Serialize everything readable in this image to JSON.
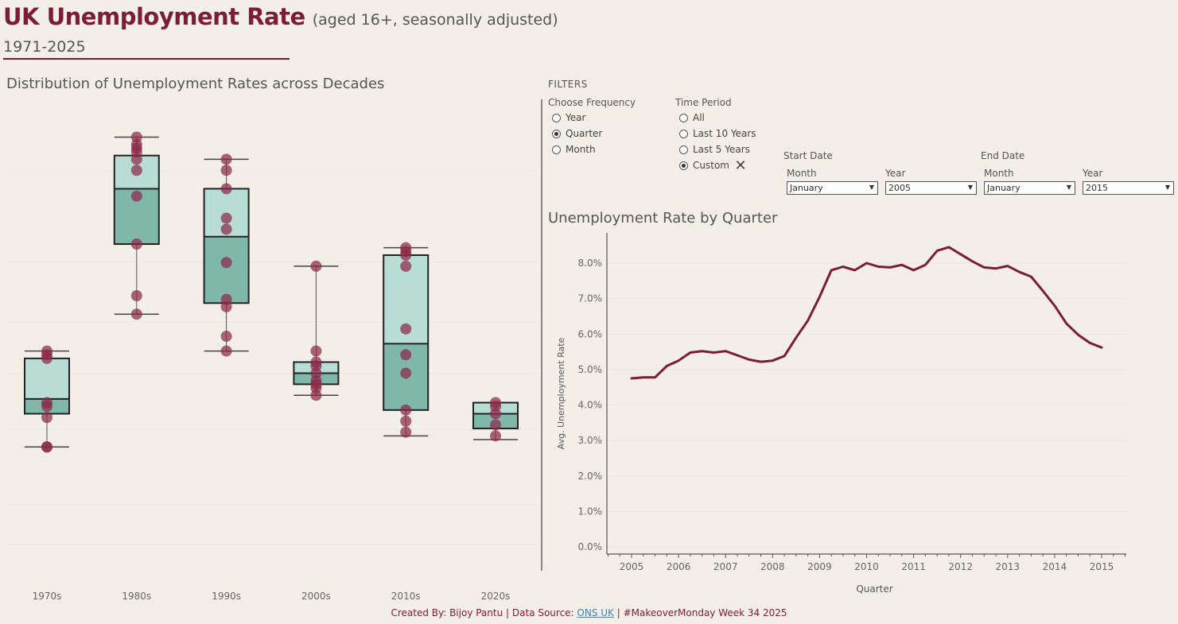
{
  "header": {
    "title": "UK Unemployment Rate",
    "subtitle": "(aged 16+, seasonally adjusted)",
    "years": "1971-2025"
  },
  "boxplot": {
    "section_title": "Distribution of Unemployment Rates across Decades"
  },
  "linechart": {
    "section_title": "Unemployment Rate by Quarter"
  },
  "filters": {
    "title": "FILTERS",
    "frequency": {
      "label": "Choose Frequency",
      "options": [
        "Year",
        "Quarter",
        "Month"
      ],
      "selected": "Quarter"
    },
    "time_period": {
      "label": "Time Period",
      "options": [
        "All",
        "Last 10 Years",
        "Last 5 Years",
        "Custom"
      ],
      "selected": "Custom"
    },
    "start_date": {
      "label": "Start Date",
      "month_label": "Month",
      "year_label": "Year",
      "month": "January",
      "year": "2005"
    },
    "end_date": {
      "label": "End Date",
      "month_label": "Month",
      "year_label": "Year",
      "month": "January",
      "year": "2015"
    }
  },
  "footer": {
    "prefix": "Created By: Bijoy Pantu | Data Source: ",
    "link": "ONS UK",
    "suffix": " | #MakeoverMonday Week 34 2025"
  },
  "colors": {
    "brand": "#7b1c38",
    "box_upper": "#b7ddd4",
    "box_lower": "#7fb8a8",
    "dot": "#8b2a4a",
    "line": "#7b1c38"
  },
  "chart_data": [
    {
      "type": "box",
      "title": "Distribution of Unemployment Rates across Decades",
      "categories": [
        "1970s",
        "1980s",
        "1990s",
        "2000s",
        "2010s",
        "2020s"
      ],
      "ylim": [
        0,
        12.5
      ],
      "boxes": [
        {
          "category": "1970s",
          "min": 3.4,
          "q1": 4.3,
          "median": 4.7,
          "q3": 5.8,
          "max": 6.0,
          "points": [
            3.4,
            3.4,
            4.2,
            4.5,
            4.6,
            5.8,
            5.9,
            6.0
          ]
        },
        {
          "category": "1980s",
          "min": 7.0,
          "q1": 8.9,
          "median": 10.4,
          "q3": 11.3,
          "max": 11.8,
          "points": [
            7.0,
            7.5,
            8.9,
            10.2,
            10.9,
            11.2,
            11.4,
            11.5,
            11.6,
            11.8
          ]
        },
        {
          "category": "1990s",
          "min": 6.0,
          "q1": 7.3,
          "median": 9.1,
          "q3": 10.4,
          "max": 11.2,
          "points": [
            6.0,
            6.4,
            7.2,
            7.4,
            8.4,
            9.3,
            9.6,
            10.4,
            10.9,
            11.2
          ]
        },
        {
          "category": "2000s",
          "min": 4.8,
          "q1": 5.1,
          "median": 5.4,
          "q3": 5.7,
          "max": 8.3,
          "points": [
            4.8,
            5.0,
            5.1,
            5.2,
            5.4,
            5.6,
            5.7,
            6.0,
            8.3
          ]
        },
        {
          "category": "2010s",
          "min": 3.7,
          "q1": 4.4,
          "median": 6.2,
          "q3": 8.6,
          "max": 8.8,
          "points": [
            3.8,
            4.1,
            4.4,
            5.4,
            5.9,
            6.6,
            8.3,
            8.6,
            8.7,
            8.8
          ]
        },
        {
          "category": "2020s",
          "min": 3.6,
          "q1": 3.9,
          "median": 4.3,
          "q3": 4.6,
          "max": 4.6,
          "points": [
            3.7,
            4.0,
            4.3,
            4.5,
            4.6
          ]
        }
      ]
    },
    {
      "type": "line",
      "title": "Unemployment Rate by Quarter",
      "xlabel": "Quarter",
      "ylabel": "Avg. Unemployment Rate",
      "ylim": [
        0,
        8.8
      ],
      "yticks": [
        0,
        1,
        2,
        3,
        4,
        5,
        6,
        7,
        8
      ],
      "ytick_labels": [
        "0.0%",
        "1.0%",
        "2.0%",
        "3.0%",
        "4.0%",
        "5.0%",
        "6.0%",
        "7.0%",
        "8.0%"
      ],
      "xlim": [
        2004.5,
        2015.5
      ],
      "xticks": [
        2005,
        2006,
        2007,
        2008,
        2009,
        2010,
        2011,
        2012,
        2013,
        2014,
        2015
      ],
      "series": [
        {
          "x": [
            2005,
            2005.25,
            2005.5,
            2005.75,
            2006,
            2006.25,
            2006.5,
            2006.75,
            2007,
            2007.25,
            2007.5,
            2007.75,
            2008,
            2008.25,
            2008.5,
            2008.75,
            2009,
            2009.25,
            2009.5,
            2009.75,
            2010,
            2010.25,
            2010.5,
            2010.75,
            2011,
            2011.25,
            2011.5,
            2011.75,
            2012,
            2012.25,
            2012.5,
            2012.75,
            2013,
            2013.25,
            2013.5,
            2013.75,
            2014,
            2014.25,
            2014.5,
            2014.75,
            2015
          ],
          "y": [
            4.75,
            4.78,
            4.78,
            5.1,
            5.25,
            5.48,
            5.52,
            5.48,
            5.52,
            5.4,
            5.28,
            5.22,
            5.25,
            5.38,
            5.9,
            6.38,
            7.05,
            7.8,
            7.9,
            7.8,
            8.0,
            7.9,
            7.88,
            7.95,
            7.8,
            7.95,
            8.35,
            8.45,
            8.25,
            8.05,
            7.88,
            7.85,
            7.92,
            7.75,
            7.62,
            7.22,
            6.8,
            6.3,
            5.98,
            5.75,
            5.62
          ]
        }
      ]
    }
  ]
}
